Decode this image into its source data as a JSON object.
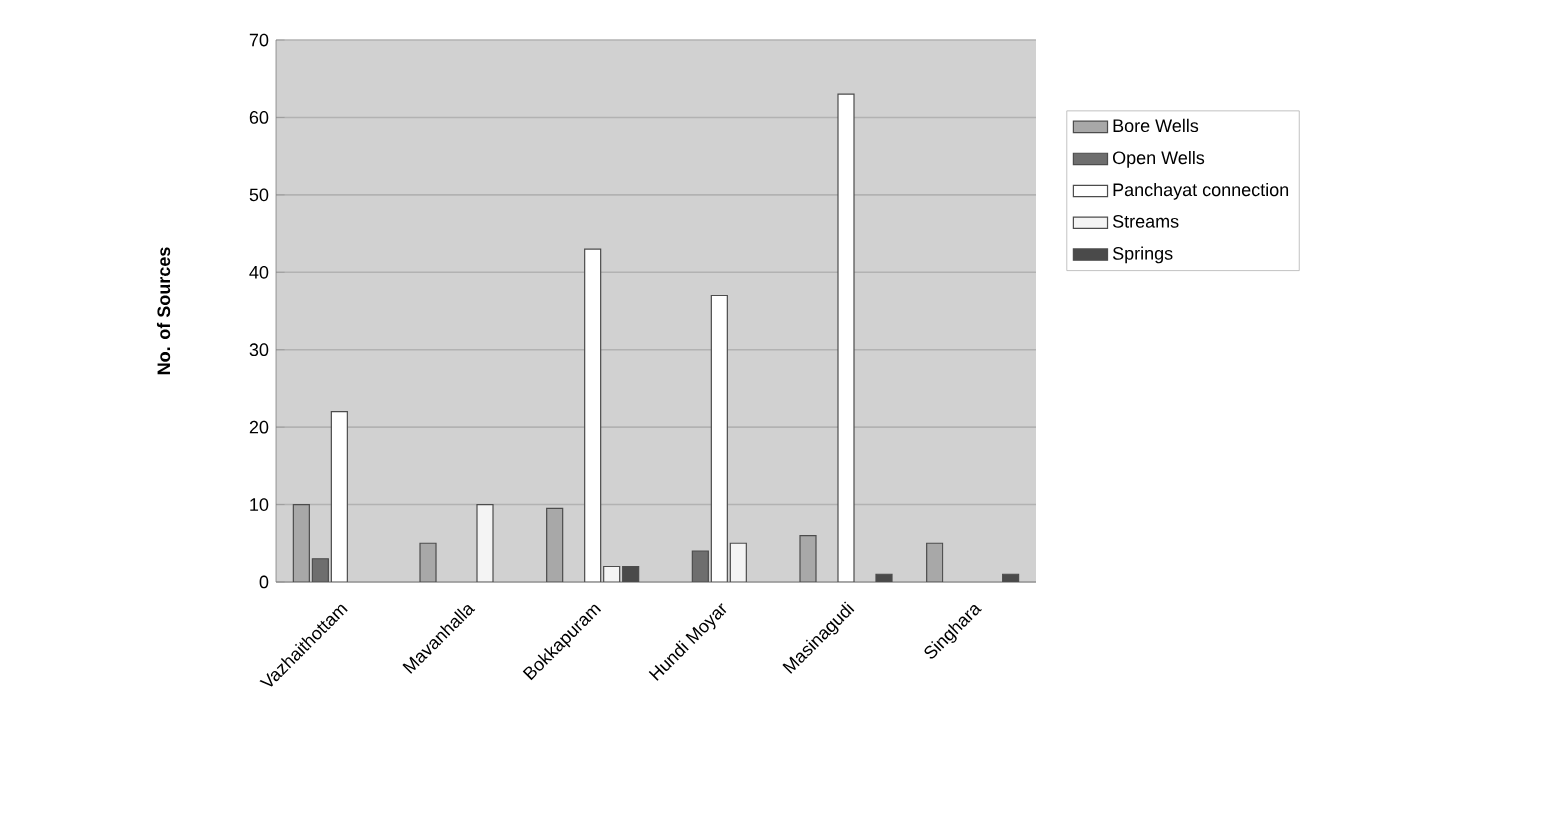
{
  "chart_data": {
    "type": "bar",
    "ylabel": "No. of Sources",
    "categories": [
      "Vazhaithottam",
      "Mavanhalla",
      "Bokkapuram",
      "Hundi Moyar",
      "Masinagudi",
      "Singhara"
    ],
    "series": [
      {
        "name": "Bore Wells",
        "color": "#a8a8a8",
        "values": [
          10,
          5,
          9.5,
          null,
          6,
          5
        ]
      },
      {
        "name": "Open Wells",
        "color": "#6e6e6e",
        "values": [
          3,
          null,
          null,
          4,
          null,
          null
        ]
      },
      {
        "name": "Panchayat connection",
        "color": "#ffffff",
        "values": [
          22,
          null,
          43,
          37,
          63,
          null
        ]
      },
      {
        "name": "Streams",
        "color": "#f4f4f4",
        "values": [
          null,
          10,
          2,
          5,
          null,
          null
        ]
      },
      {
        "name": "Springs",
        "color": "#4a4a4a",
        "values": [
          null,
          null,
          2,
          null,
          1,
          1
        ]
      }
    ],
    "ylim": [
      0,
      70
    ],
    "yticks": [
      0,
      10,
      20,
      30,
      40,
      50,
      60,
      70
    ],
    "grid": "y",
    "legend": "right"
  }
}
